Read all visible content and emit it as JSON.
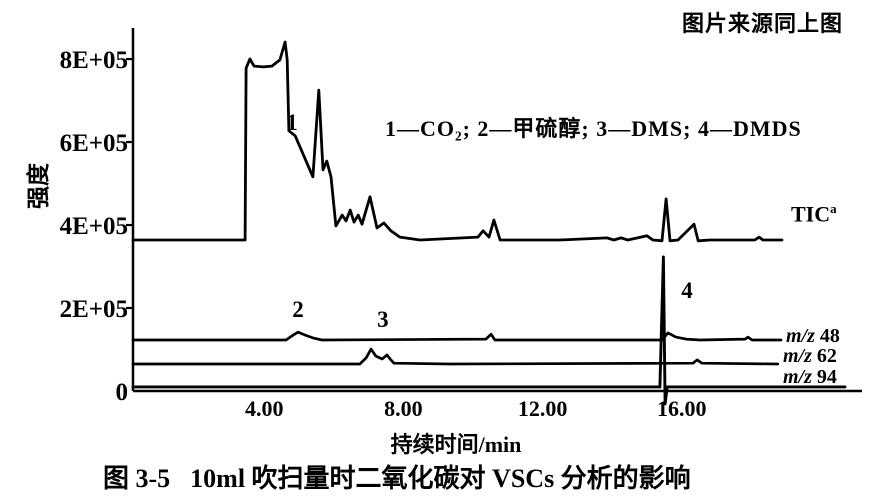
{
  "page": {
    "source_note": "图片来源同上图",
    "caption_prefix": "图 3-5",
    "caption_text": "10ml 吹扫量时二氧化碳对 VSCs 分析的影响"
  },
  "chart_data": {
    "type": "line",
    "title": "图 3-5 10ml 吹扫量时二氧化碳对 VSCs 分析的影响",
    "xlabel": "持续时间/min",
    "ylabel": "强度",
    "legend_note": "1—CO₂; 2—甲硫醇; 3—DMS; 4—DMDS",
    "grid": false,
    "xlim": [
      0,
      21.2
    ],
    "ylim": [
      0,
      870000
    ],
    "x_ticks": [
      {
        "v": 4,
        "label": "4.00"
      },
      {
        "v": 8,
        "label": "8.00"
      },
      {
        "v": 12,
        "label": "12.00"
      },
      {
        "v": 16,
        "label": "16.00"
      }
    ],
    "y_ticks": [
      {
        "v": 800000,
        "label": "8E+05"
      },
      {
        "v": 600000,
        "label": "6E+05"
      },
      {
        "v": 400000,
        "label": "4E+05"
      },
      {
        "v": 200000,
        "label": "2E+05"
      },
      {
        "v": 0,
        "label": "0"
      }
    ],
    "peak_markers": [
      {
        "n": "1",
        "t": 4.8,
        "i": 629000
      },
      {
        "n": "2",
        "t": 4.97,
        "i": 178000
      },
      {
        "n": "3",
        "t": 7.41,
        "i": 154000
      },
      {
        "n": "4",
        "t": 16.15,
        "i": 224000
      }
    ],
    "series": [
      {
        "id": "tic",
        "label": "TIC",
        "label_sup": "a",
        "points": [
          [
            0.23,
            364000
          ],
          [
            3.45,
            364000
          ],
          [
            3.48,
            778000
          ],
          [
            3.59,
            800000
          ],
          [
            3.71,
            783000
          ],
          [
            3.97,
            781000
          ],
          [
            4.22,
            783000
          ],
          [
            4.45,
            798000
          ],
          [
            4.6,
            841000
          ],
          [
            4.66,
            798000
          ],
          [
            4.71,
            627000
          ],
          [
            4.89,
            615000
          ],
          [
            5.4,
            516000
          ],
          [
            5.57,
            725000
          ],
          [
            5.69,
            533000
          ],
          [
            5.8,
            554000
          ],
          [
            5.92,
            516000
          ],
          [
            6.06,
            398000
          ],
          [
            6.24,
            424000
          ],
          [
            6.35,
            410000
          ],
          [
            6.47,
            436000
          ],
          [
            6.58,
            407000
          ],
          [
            6.7,
            424000
          ],
          [
            6.81,
            402000
          ],
          [
            7.04,
            468000
          ],
          [
            7.24,
            393000
          ],
          [
            7.44,
            405000
          ],
          [
            7.64,
            386000
          ],
          [
            7.9,
            371000
          ],
          [
            8.48,
            364000
          ],
          [
            10.14,
            371000
          ],
          [
            10.29,
            386000
          ],
          [
            10.46,
            371000
          ],
          [
            10.6,
            412000
          ],
          [
            10.78,
            364000
          ],
          [
            12.5,
            364000
          ],
          [
            13.85,
            369000
          ],
          [
            14.05,
            364000
          ],
          [
            14.25,
            369000
          ],
          [
            14.45,
            364000
          ],
          [
            15.0,
            374000
          ],
          [
            15.17,
            364000
          ],
          [
            15.43,
            362000
          ],
          [
            15.55,
            463000
          ],
          [
            15.66,
            362000
          ],
          [
            15.89,
            364000
          ],
          [
            16.35,
            402000
          ],
          [
            16.47,
            362000
          ],
          [
            16.81,
            364000
          ],
          [
            18.1,
            364000
          ],
          [
            18.22,
            371000
          ],
          [
            18.33,
            364000
          ],
          [
            18.88,
            364000
          ]
        ]
      },
      {
        "id": "mz48",
        "label_prefix": "m/z",
        "label_value": "48",
        "points": [
          [
            0.23,
            123000
          ],
          [
            4.63,
            123000
          ],
          [
            4.8,
            133000
          ],
          [
            4.97,
            142000
          ],
          [
            5.17,
            135000
          ],
          [
            5.4,
            128000
          ],
          [
            5.66,
            123000
          ],
          [
            10.37,
            125000
          ],
          [
            10.52,
            137000
          ],
          [
            10.63,
            123000
          ],
          [
            14.8,
            123000
          ],
          [
            15.43,
            123000
          ],
          [
            15.6,
            140000
          ],
          [
            15.83,
            130000
          ],
          [
            16.12,
            125000
          ],
          [
            16.52,
            123000
          ],
          [
            17.82,
            125000
          ],
          [
            17.9,
            130000
          ],
          [
            18.02,
            123000
          ],
          [
            18.85,
            123000
          ]
        ]
      },
      {
        "id": "mz62",
        "label_prefix": "m/z",
        "label_value": "62",
        "points": [
          [
            0.23,
            65000
          ],
          [
            6.75,
            65000
          ],
          [
            6.93,
            80000
          ],
          [
            7.07,
            101000
          ],
          [
            7.21,
            84000
          ],
          [
            7.39,
            77000
          ],
          [
            7.53,
            87000
          ],
          [
            7.64,
            75000
          ],
          [
            7.73,
            67000
          ],
          [
            9.34,
            65000
          ],
          [
            16.32,
            67000
          ],
          [
            16.44,
            75000
          ],
          [
            16.58,
            67000
          ],
          [
            18.76,
            65000
          ]
        ]
      },
      {
        "id": "mz94",
        "label_prefix": "m/z",
        "label_value": "94",
        "points": [
          [
            0.23,
            10000
          ],
          [
            15.37,
            10000
          ],
          [
            15.47,
            323000
          ],
          [
            15.52,
            -31000
          ],
          [
            15.58,
            10000
          ],
          [
            20.69,
            10000
          ]
        ]
      }
    ]
  }
}
